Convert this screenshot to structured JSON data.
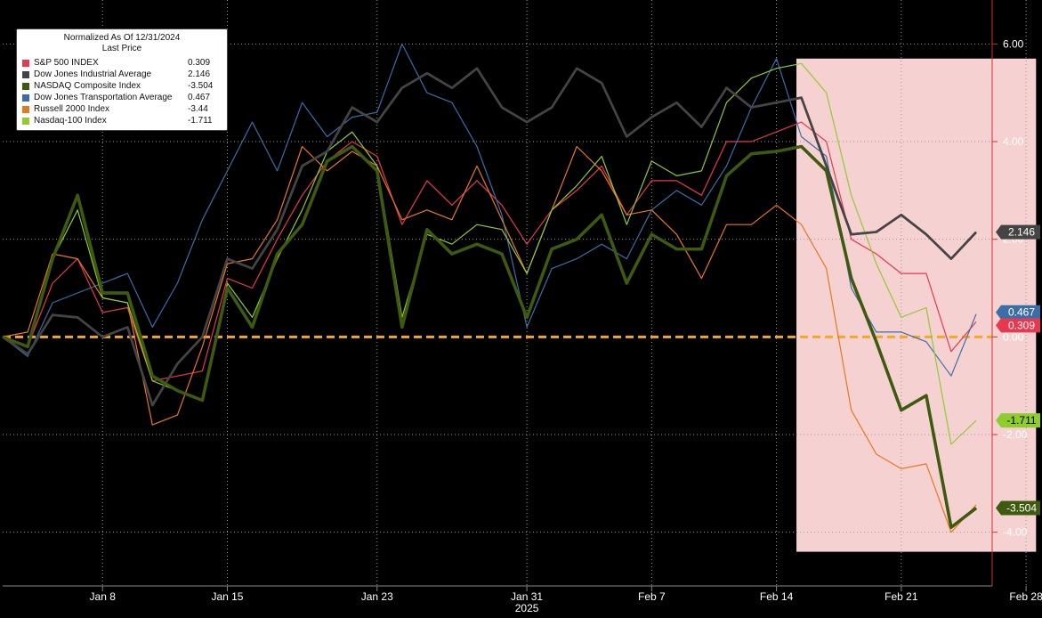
{
  "legend": {
    "title": "Normalized As Of 12/31/2024",
    "subtitle": "Last Price"
  },
  "chart_data": {
    "type": "line",
    "x_tick_labels": [
      "Jan 8",
      "Jan 15",
      "Jan 23",
      "Jan 31",
      "Feb 7",
      "Feb 14",
      "Feb 21",
      "Feb 28"
    ],
    "x_tick_indices": [
      4,
      9,
      15,
      21,
      26,
      31,
      36,
      41
    ],
    "year_label": "2025",
    "y_ticks": [
      6.0,
      4.0,
      2.0,
      0.0,
      -2.0,
      -4.0
    ],
    "y_tick_labels": [
      "6.00",
      "4.00",
      "2.00",
      "0.00",
      "-2.00",
      "-4.00"
    ],
    "ylim": [
      -5.1,
      6.9
    ],
    "highlight_range": {
      "start_index": 31.8,
      "end_index": 41.4,
      "y_top": 5.7,
      "y_bottom": -4.4
    },
    "zero_line_color": "#f5a623",
    "series": [
      {
        "name": "S&P 500 INDEX",
        "value_label": "0.309",
        "color": "#e8384f",
        "width": 1.2,
        "values": [
          0.0,
          -0.2,
          1.1,
          1.6,
          0.5,
          0.6,
          -0.9,
          -0.8,
          -0.7,
          1.2,
          1.0,
          2.0,
          2.9,
          3.6,
          4.0,
          3.7,
          2.3,
          3.2,
          2.7,
          3.2,
          2.7,
          1.9,
          2.6,
          3.0,
          3.5,
          2.5,
          3.2,
          3.2,
          2.9,
          4.0,
          4.0,
          4.2,
          4.4,
          4.0,
          2.0,
          1.7,
          1.3,
          1.3,
          -0.3,
          0.31
        ]
      },
      {
        "name": "Dow Jones Industrial Average",
        "value_label": "2.146",
        "color": "#444444",
        "width": 2.6,
        "values": [
          0.0,
          -0.35,
          0.45,
          0.4,
          0.0,
          0.2,
          -1.4,
          -0.55,
          0.0,
          1.6,
          1.4,
          2.2,
          3.5,
          3.8,
          4.7,
          4.4,
          5.1,
          5.4,
          5.1,
          5.5,
          4.7,
          4.4,
          4.7,
          5.5,
          5.2,
          4.1,
          4.5,
          4.8,
          4.3,
          5.1,
          4.7,
          4.8,
          4.9,
          3.5,
          2.1,
          2.15,
          2.5,
          2.1,
          1.6,
          2.146
        ]
      },
      {
        "name": "NASDAQ Composite Index",
        "value_label": "-3.504",
        "color": "#3d5a0e",
        "width": 3.4,
        "values": [
          0.0,
          -0.2,
          1.6,
          2.9,
          0.9,
          0.9,
          -0.8,
          -1.1,
          -1.3,
          1.0,
          0.2,
          1.7,
          2.3,
          3.6,
          3.9,
          3.4,
          0.2,
          2.2,
          1.7,
          1.9,
          1.7,
          0.4,
          1.8,
          2.0,
          2.5,
          1.1,
          2.1,
          1.8,
          1.8,
          3.3,
          3.75,
          3.8,
          3.9,
          3.4,
          1.2,
          -0.1,
          -1.5,
          -1.2,
          -3.9,
          -3.504
        ]
      },
      {
        "name": "Dow Jones Transportation Average",
        "value_label": "0.467",
        "color": "#3a6ea8",
        "width": 1.2,
        "values": [
          0.0,
          -0.4,
          0.7,
          0.9,
          1.1,
          1.3,
          0.2,
          1.1,
          2.4,
          3.4,
          4.4,
          3.4,
          4.8,
          4.1,
          4.5,
          4.6,
          6.0,
          5.0,
          4.8,
          3.9,
          2.5,
          0.2,
          1.4,
          1.6,
          1.9,
          1.6,
          2.6,
          3.0,
          2.7,
          3.5,
          4.7,
          5.7,
          4.1,
          3.7,
          1.0,
          0.1,
          0.1,
          -0.1,
          -0.8,
          0.467
        ]
      },
      {
        "name": "Russell 2000 Index",
        "value_label": "-3.44",
        "color": "#e87722",
        "width": 1.2,
        "values": [
          0.0,
          0.1,
          1.7,
          1.6,
          0.8,
          0.7,
          -1.8,
          -1.6,
          -0.2,
          1.5,
          1.6,
          2.4,
          3.9,
          3.4,
          3.8,
          3.5,
          2.4,
          2.6,
          2.4,
          3.5,
          2.4,
          1.3,
          2.6,
          3.9,
          3.4,
          2.5,
          2.6,
          2.1,
          1.2,
          2.3,
          2.3,
          2.7,
          2.3,
          1.4,
          -1.5,
          -2.4,
          -2.7,
          -2.6,
          -4.0,
          -3.44
        ]
      },
      {
        "name": "Nasdaq-100 Index",
        "value_label": "-1.711",
        "color": "#8fcc2f",
        "width": 1.2,
        "values": [
          0.0,
          -0.2,
          1.6,
          2.6,
          0.8,
          0.7,
          -0.9,
          -1.1,
          -1.3,
          1.1,
          0.4,
          1.6,
          2.6,
          3.8,
          4.2,
          3.5,
          0.4,
          2.1,
          1.9,
          2.3,
          2.2,
          1.3,
          2.6,
          3.1,
          3.7,
          2.3,
          3.6,
          3.3,
          3.4,
          4.8,
          5.3,
          5.5,
          5.6,
          5.0,
          2.9,
          1.5,
          0.4,
          0.6,
          -2.2,
          -1.711
        ]
      }
    ]
  }
}
